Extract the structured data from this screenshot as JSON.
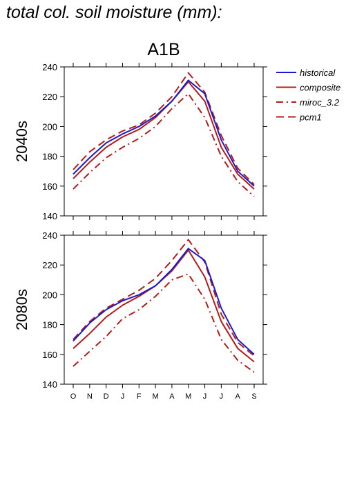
{
  "figure_title": "total col. soil moisture (mm):",
  "panel_title": "A1B",
  "legend": [
    {
      "label": "historical",
      "color": "#1a1acd",
      "dash": "solid"
    },
    {
      "label": "composite",
      "color": "#b31b1b",
      "dash": "solid"
    },
    {
      "label": "miroc_3.2",
      "color": "#b31b1b",
      "dash": "dashdot"
    },
    {
      "label": "pcm1",
      "color": "#b31b1b",
      "dash": "dashed"
    }
  ],
  "chart_data": [
    {
      "type": "line",
      "ylabel": "2040s",
      "xlabel": "",
      "categories": [
        "O",
        "N",
        "D",
        "J",
        "F",
        "M",
        "A",
        "M",
        "J",
        "J",
        "A",
        "S"
      ],
      "ylim": [
        140,
        240
      ],
      "yticks": [
        140,
        160,
        180,
        200,
        220,
        240
      ],
      "series": [
        {
          "name": "historical",
          "values": [
            168,
            179,
            189,
            195,
            200,
            207,
            217,
            231,
            222,
            191,
            170,
            160
          ]
        },
        {
          "name": "composite",
          "values": [
            165,
            176,
            186,
            193,
            198,
            206,
            217,
            230,
            217,
            186,
            168,
            158
          ]
        },
        {
          "name": "miroc_3.2",
          "values": [
            158,
            169,
            179,
            186,
            192,
            200,
            212,
            222,
            206,
            180,
            163,
            153
          ]
        },
        {
          "name": "pcm1",
          "values": [
            171,
            183,
            191,
            197,
            201,
            209,
            220,
            236,
            223,
            194,
            172,
            161
          ]
        }
      ]
    },
    {
      "type": "line",
      "ylabel": "2080s",
      "xlabel": "",
      "categories": [
        "O",
        "N",
        "D",
        "J",
        "F",
        "M",
        "A",
        "M",
        "J",
        "J",
        "A",
        "S"
      ],
      "ylim": [
        140,
        240
      ],
      "yticks": [
        140,
        160,
        180,
        200,
        220,
        240
      ],
      "series": [
        {
          "name": "historical",
          "values": [
            169,
            181,
            190,
            196,
            200,
            206,
            217,
            231,
            223,
            191,
            170,
            160
          ]
        },
        {
          "name": "composite",
          "values": [
            164,
            174,
            185,
            193,
            199,
            206,
            216,
            230,
            212,
            182,
            164,
            155
          ]
        },
        {
          "name": "miroc_3.2",
          "values": [
            152,
            162,
            172,
            184,
            190,
            199,
            210,
            214,
            197,
            170,
            156,
            148
          ]
        },
        {
          "name": "pcm1",
          "values": [
            170,
            182,
            191,
            197,
            203,
            211,
            223,
            237,
            222,
            187,
            168,
            159
          ]
        }
      ]
    }
  ]
}
